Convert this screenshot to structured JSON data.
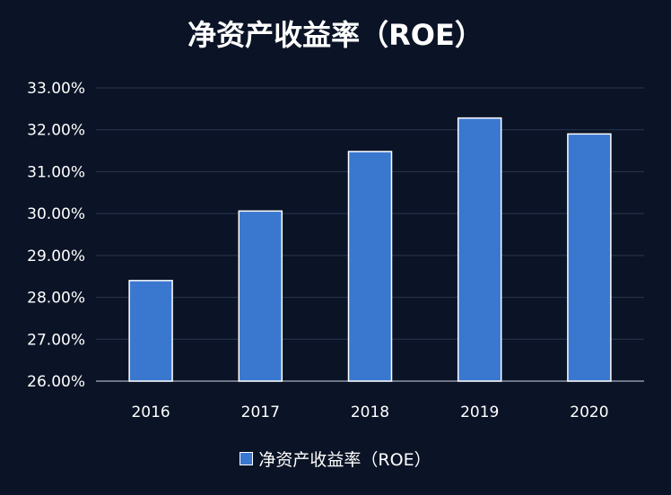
{
  "chart_data": {
    "type": "bar",
    "title": "净资产收益率（ROE）",
    "categories": [
      "2016",
      "2017",
      "2018",
      "2019",
      "2020"
    ],
    "series": [
      {
        "name": "净资产收益率（ROE）",
        "values": [
          28.4,
          30.06,
          31.48,
          32.28,
          31.9
        ]
      }
    ],
    "y_ticks": [
      26,
      27,
      28,
      29,
      30,
      31,
      32,
      33
    ],
    "y_tick_labels": [
      "26.00%",
      "27.00%",
      "28.00%",
      "29.00%",
      "30.00%",
      "31.00%",
      "32.00%",
      "33.00%"
    ],
    "ylim": [
      26,
      33
    ],
    "xlabel": "",
    "ylabel": "",
    "grid": true,
    "legend_position": "bottom",
    "bar_color": "#3a78d0",
    "bar_border_color": "#ffffff",
    "background_color": "#0b1426"
  }
}
